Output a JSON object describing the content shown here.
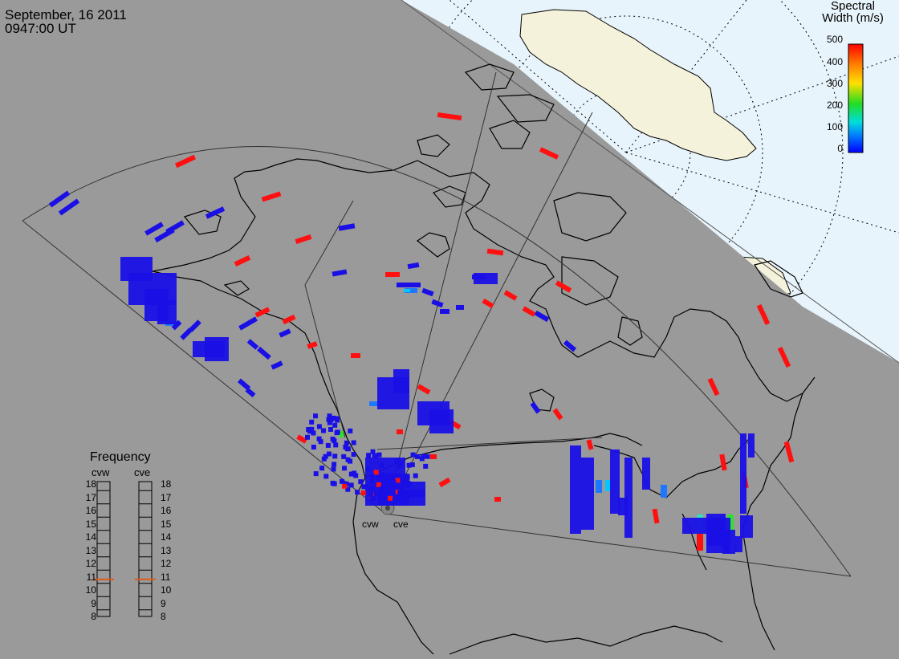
{
  "header": {
    "date": "September, 16 2011",
    "time": "0947:00 UT"
  },
  "colorbar": {
    "title_line1": "Spectral",
    "title_line2": "Width (m/s)",
    "ticks": [
      "500",
      "400",
      "300",
      "200",
      "100",
      "0"
    ],
    "colors": [
      "#ff0000",
      "#ff8c00",
      "#ffdd00",
      "#22dd22",
      "#00e5e5",
      "#0060ff",
      "#0000ff"
    ]
  },
  "frequency_panel": {
    "title": "Frequency",
    "radars": [
      "cvw",
      "cve"
    ],
    "scale": [
      "18",
      "17",
      "16",
      "15",
      "14",
      "13",
      "12",
      "11",
      "10",
      "9",
      "8"
    ],
    "current_mhz": [
      10.8,
      10.8
    ]
  },
  "radar_sites": [
    "cvw",
    "cve"
  ],
  "colors": {
    "background": "#9a9a9a",
    "daylight": "#e8f4fb",
    "land_daylight": "#f5f2dc",
    "marker": "#e05a1a"
  }
}
